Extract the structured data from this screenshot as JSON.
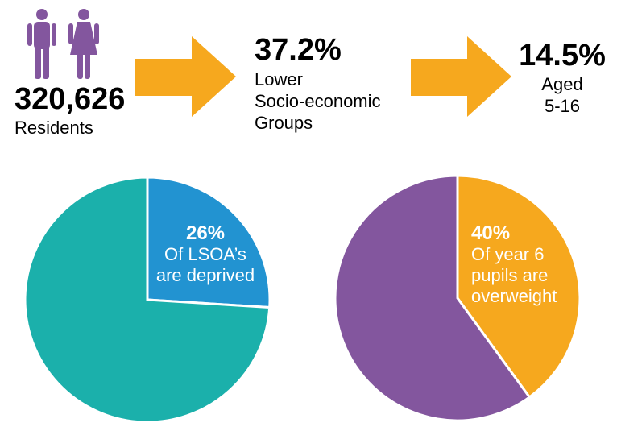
{
  "stats": {
    "residents": {
      "value": "320,626",
      "label": "Residents"
    },
    "socio_economic": {
      "value": "37.2%",
      "label_line1": "Lower",
      "label_line2": "Socio-economic",
      "label_line3": "Groups"
    },
    "aged": {
      "value": "14.5%",
      "label_line1": "Aged",
      "label_line2": "5-16"
    }
  },
  "icons": {
    "people": "male-female-people-icon",
    "arrow": "right-arrow-icon"
  },
  "colors": {
    "purple": "#83569E",
    "orange": "#F6A81E",
    "teal": "#1BB0AB",
    "blue": "#2293D1"
  },
  "chart_data": [
    {
      "type": "pie",
      "title": "",
      "slices": [
        {
          "label": "Of LSOA's are deprived",
          "value": 26,
          "color": "#2293D1"
        },
        {
          "label": "",
          "value": 74,
          "color": "#1BB0AB"
        }
      ],
      "label_pct": "26%",
      "label_line1": "Of LSOA’s",
      "label_line2": "are deprived"
    },
    {
      "type": "pie",
      "title": "",
      "slices": [
        {
          "label": "Of year 6 pupils are overweight",
          "value": 40,
          "color": "#F6A81E"
        },
        {
          "label": "",
          "value": 60,
          "color": "#83569E"
        }
      ],
      "label_pct": "40%",
      "label_line1": "Of year 6",
      "label_line2": "pupils are",
      "label_line3": "overweight"
    }
  ]
}
